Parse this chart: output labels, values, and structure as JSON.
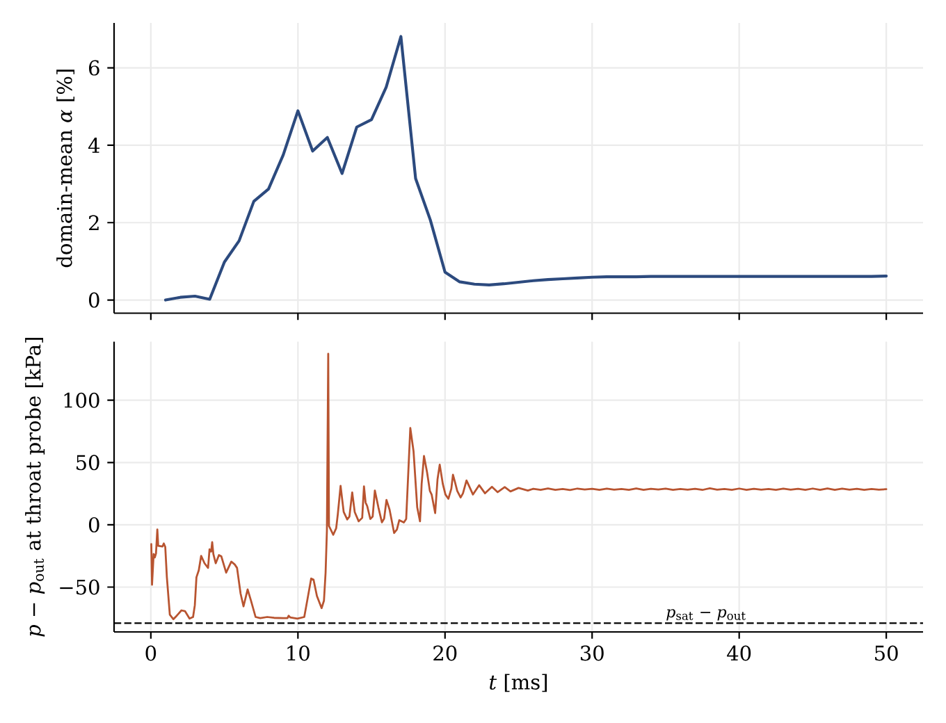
{
  "chart_data": [
    {
      "type": "line",
      "ylabel": "domain-mean *α* [%]",
      "x": [
        1,
        2,
        3,
        4,
        5,
        6,
        7,
        8,
        9,
        10,
        11,
        12,
        13,
        14,
        15,
        16,
        17,
        18,
        19,
        20,
        21,
        22,
        23,
        24,
        25,
        26,
        27,
        28,
        29,
        30,
        31,
        32,
        33,
        34,
        35,
        36,
        37,
        38,
        39,
        40,
        41,
        42,
        43,
        44,
        45,
        46,
        47,
        48,
        49,
        50
      ],
      "series": [
        {
          "color": "#2c4a7e",
          "values": [
            0.0,
            0.07,
            0.1,
            0.02,
            0.98,
            1.53,
            2.55,
            2.87,
            3.75,
            4.89,
            3.85,
            4.2,
            3.27,
            4.47,
            4.66,
            5.5,
            6.81,
            3.14,
            2.07,
            0.72,
            0.47,
            0.41,
            0.39,
            0.42,
            0.46,
            0.5,
            0.53,
            0.55,
            0.57,
            0.59,
            0.6,
            0.6,
            0.6,
            0.61,
            0.61,
            0.61,
            0.61,
            0.61,
            0.61,
            0.61,
            0.61,
            0.61,
            0.61,
            0.61,
            0.61,
            0.61,
            0.61,
            0.61,
            0.61,
            0.62
          ]
        }
      ],
      "xlim": [
        -2.5,
        52.5
      ],
      "xticks": [
        0,
        10,
        20,
        30,
        40,
        50
      ],
      "ylim": [
        -0.34,
        7.16
      ],
      "yticks": [
        0,
        2,
        4,
        6
      ],
      "grid": true,
      "tick_labels": "y"
    },
    {
      "type": "line",
      "xlabel": "*t* [ms]",
      "ylabel": "*p* − *p*$_{out}$ at throat probe [kPa]",
      "series": [
        {
          "color": "#b85430",
          "x": [
            0.03,
            0.08,
            0.19,
            0.27,
            0.35,
            0.44,
            0.5,
            0.79,
            0.88,
            0.98,
            1.09,
            1.29,
            1.53,
            1.76,
            2.08,
            2.32,
            2.63,
            2.87,
            2.99,
            3.1,
            3.26,
            3.42,
            3.65,
            3.89,
            3.99,
            4.1,
            4.17,
            4.25,
            4.41,
            4.63,
            4.79,
            5.12,
            5.47,
            5.7,
            5.86,
            6.1,
            6.3,
            6.58,
            6.81,
            7.12,
            7.44,
            7.91,
            8.38,
            9.01,
            9.29,
            9.37,
            9.48,
            9.96,
            10.43,
            10.66,
            10.9,
            11.06,
            11.29,
            11.61,
            11.77,
            11.88,
            11.97,
            12.06,
            12.11,
            12.4,
            12.6,
            12.71,
            12.9,
            13.11,
            13.35,
            13.5,
            13.69,
            13.86,
            14.13,
            14.37,
            14.49,
            14.6,
            14.71,
            14.92,
            15.08,
            15.23,
            15.47,
            15.71,
            15.86,
            16.02,
            16.23,
            16.54,
            16.73,
            16.89,
            17.2,
            17.36,
            17.64,
            17.86,
            18.11,
            18.3,
            18.41,
            18.57,
            18.78,
            18.97,
            19.09,
            19.33,
            19.49,
            19.64,
            19.85,
            20.03,
            20.23,
            20.43,
            20.54,
            20.67,
            20.83,
            21.06,
            21.22,
            21.46,
            21.61,
            21.9,
            22.32,
            22.72,
            23.19,
            23.58,
            24.06,
            24.45,
            25.0,
            25.63,
            26.0,
            26.5,
            27.0,
            27.5,
            28.0,
            28.5,
            29.0,
            29.5,
            30.0,
            30.5,
            31.0,
            31.5,
            32.0,
            32.5,
            33.0,
            33.5,
            34.0,
            34.5,
            35.0,
            35.5,
            36.0,
            36.5,
            37.0,
            37.5,
            38.0,
            38.5,
            39.0,
            39.5,
            40.0,
            40.5,
            41.0,
            41.5,
            42.0,
            42.5,
            43.0,
            43.5,
            44.0,
            44.5,
            45.0,
            45.5,
            46.0,
            46.5,
            47.0,
            47.5,
            48.0,
            48.5,
            49.0,
            49.5,
            50.0
          ],
          "values": [
            -15.5,
            -48.1,
            -23.4,
            -26.2,
            -23.0,
            -3.7,
            -16.9,
            -17.4,
            -15.0,
            -17.8,
            -42.1,
            -72.1,
            -75.8,
            -73.0,
            -68.7,
            -69.3,
            -75.3,
            -74.0,
            -64.6,
            -42.1,
            -36.5,
            -24.9,
            -30.9,
            -34.6,
            -19.7,
            -21.5,
            -14.0,
            -23.4,
            -30.9,
            -24.3,
            -25.3,
            -38.4,
            -29.6,
            -31.8,
            -34.6,
            -55.2,
            -65.5,
            -51.9,
            -60.9,
            -74.0,
            -74.9,
            -74.0,
            -74.7,
            -74.9,
            -74.9,
            -73.0,
            -74.4,
            -75.3,
            -74.0,
            -59.0,
            -43.1,
            -44.0,
            -57.1,
            -66.9,
            -60.9,
            -38.4,
            -4.7,
            137.3,
            -0.9,
            -8.0,
            -2.8,
            8.4,
            31.3,
            10.3,
            4.3,
            6.6,
            26.0,
            10.3,
            2.8,
            5.6,
            30.9,
            17.8,
            15.0,
            4.7,
            6.6,
            27.5,
            14.0,
            2.0,
            4.9,
            20.0,
            12.2,
            -6.6,
            -3.7,
            3.7,
            1.9,
            4.7,
            77.7,
            59.0,
            14.0,
            2.8,
            32.8,
            55.2,
            42.1,
            27.2,
            24.3,
            9.4,
            36.5,
            48.3,
            32.8,
            24.3,
            20.9,
            29.0,
            40.2,
            34.6,
            27.2,
            21.9,
            25.3,
            35.6,
            31.8,
            24.3,
            31.8,
            25.3,
            30.5,
            26.2,
            30.3,
            26.8,
            29.6,
            27.5,
            28.9,
            28.0,
            29.2,
            28.1,
            28.8,
            27.9,
            29.1,
            28.3,
            28.9,
            28.0,
            29.0,
            28.2,
            28.8,
            28.1,
            29.2,
            28.0,
            28.9,
            28.3,
            29.0,
            28.1,
            28.7,
            28.2,
            28.9,
            28.0,
            29.3,
            28.2,
            28.8,
            28.1,
            29.1,
            28.0,
            28.9,
            28.2,
            28.8,
            28.1,
            29.0,
            28.2,
            28.9,
            28.1,
            29.1,
            28.0,
            29.2,
            28.1,
            29.0,
            28.2,
            28.9,
            28.1,
            28.8,
            28.2,
            28.6
          ]
        }
      ],
      "xlim": [
        -2.5,
        52.5
      ],
      "xticks": [
        0,
        10,
        20,
        30,
        40,
        50
      ],
      "ylim": [
        -86,
        147
      ],
      "yticks": [
        {
          "value": -50,
          "label": "−50"
        },
        0,
        50,
        100
      ],
      "grid": true,
      "ref_lines": [
        {
          "axis": "y",
          "value": -79,
          "label": "*p*$_{sat}$ − *p*$_{out}$",
          "color": "#000000",
          "line_style": "dashed"
        }
      ]
    }
  ]
}
